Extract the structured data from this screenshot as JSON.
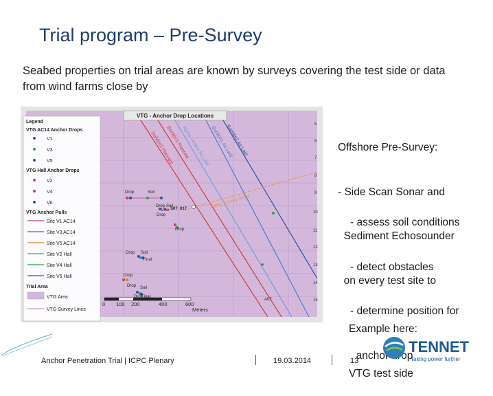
{
  "slide": {
    "title": "Trial program – Pre-Survey",
    "subtitle": "Seabed properties on trial areas are known by surveys covering the test side or data from wind farms close by"
  },
  "map": {
    "title": "VTG - Anchor Drop Locations",
    "legend": {
      "heading": "Legend",
      "groups": [
        {
          "name": "VTG AC14 Anchor Drops",
          "items": [
            "V1",
            "V3",
            "V5"
          ]
        },
        {
          "name": "VTG Hall Anchor Drops",
          "items": [
            "V2",
            "V4",
            "V6"
          ]
        },
        {
          "name": "VTG Anchor Pulls",
          "items": [
            "Site V1 AC14",
            "Site V3 AC14",
            "Site V5 AC14",
            "Site V2 Hall",
            "Site V4 Hall",
            "Site V6 Hall"
          ]
        },
        {
          "name": "Trial Area",
          "items": [
            "VTG Area",
            "VTG Survey Lines"
          ]
        }
      ]
    },
    "scalebar": {
      "ticks": [
        "0",
        "100",
        "200",
        "400",
        "600"
      ],
      "unit": "Meters"
    },
    "line_labels": [
      "BorWin2 As Laid",
      "BorWin1 As Laid",
      "Alpha Ventus As Laid",
      "BorWin1 Planned",
      "DolWin2 Planned",
      "Ferry Survey 2013"
    ],
    "point_labels": [
      "Drop",
      "Soil",
      "Drop",
      "Soil",
      "Line",
      "S07_017",
      "Drop",
      "Drop",
      "Drop",
      "Soil",
      "Final",
      "Drop",
      "Drop",
      "Soil",
      "Drop",
      "Final",
      "A07"
    ],
    "grid_numbers": [
      "5",
      "6",
      "7",
      "8",
      "9",
      "10",
      "11",
      "12",
      "13",
      "14",
      "15"
    ],
    "colors": {
      "vtg_area": "#d4b8dc",
      "survey_lines": "#c9a9d4"
    }
  },
  "right_panel": {
    "lines": [
      "Offshore Pre-Survey:",
      "- Side Scan Sonar and",
      "  Sediment Echosounder",
      "  on every test site to"
    ],
    "bullets": [
      "- assess soil conditions",
      "- detect obstacles",
      "- determine position for",
      "  anchor drop"
    ],
    "example": [
      "Example here:",
      "VTG test side"
    ]
  },
  "footer": {
    "left": "Anchor Penetration Trial | ICPC Plenary",
    "date": "19.03.2014",
    "page": "13"
  },
  "logo": {
    "name": "TENNET",
    "tagline": "Taking power further"
  }
}
